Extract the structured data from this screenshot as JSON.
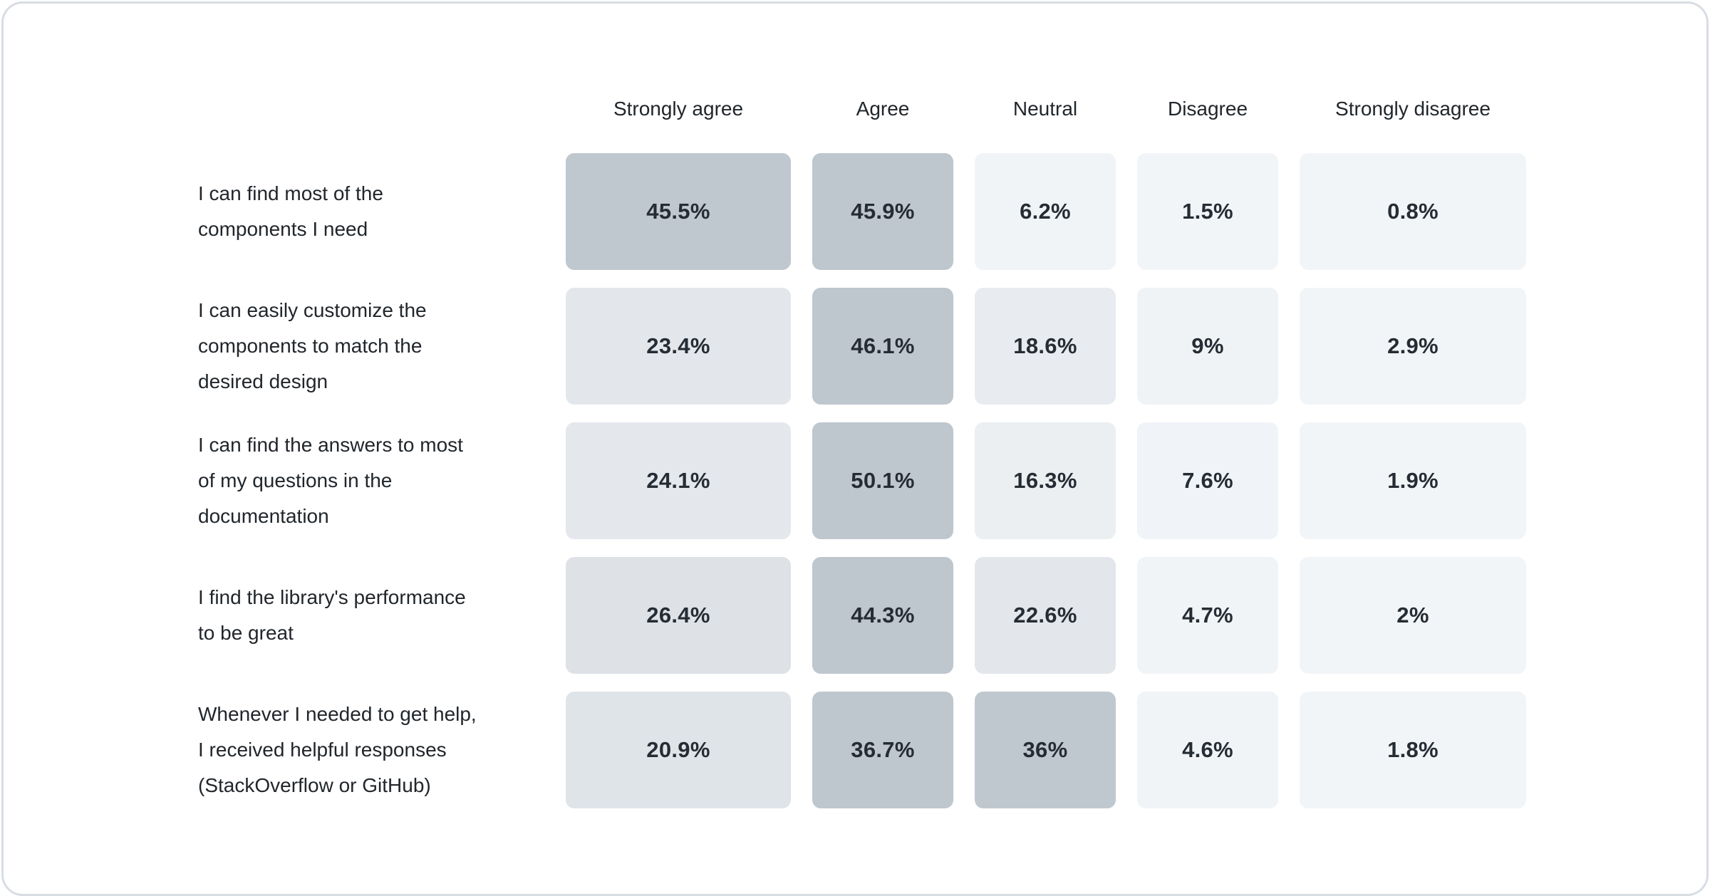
{
  "card": {
    "background": "#ffffff",
    "border_color": "#d8dde3"
  },
  "colors": {
    "cell_min": "#f2f5f8",
    "cell_max": "#bec6ce",
    "value_text": "#262c33",
    "label_text": "#21262b"
  },
  "chart_data": {
    "type": "heatmap",
    "title": "",
    "categories": [
      "Strongly agree",
      "Agree",
      "Neutral",
      "Disagree",
      "Strongly disagree"
    ],
    "rows": [
      {
        "label": "I can find most of the components I need",
        "display_label": "I can find most of the\ncomponents I need",
        "values": [
          45.5,
          45.9,
          6.2,
          1.5,
          0.8
        ],
        "value_labels": [
          "45.5%",
          "45.9%",
          "6.2%",
          "1.5%",
          "0.8%"
        ]
      },
      {
        "label": "I can easily customize the components to match the desired design",
        "display_label": "I can easily customize the\ncomponents to match the\ndesired design",
        "values": [
          23.4,
          46.1,
          18.6,
          9,
          2.9
        ],
        "value_labels": [
          "23.4%",
          "46.1%",
          "18.6%",
          "9%",
          "2.9%"
        ]
      },
      {
        "label": "I can find the answers to most of my questions in the documentation",
        "display_label": "I can find the answers to most\nof my questions in the\ndocumentation",
        "values": [
          24.1,
          50.1,
          16.3,
          7.6,
          1.9
        ],
        "value_labels": [
          "24.1%",
          "50.1%",
          "16.3%",
          "7.6%",
          "1.9%"
        ]
      },
      {
        "label": "I find the library's performance to be great",
        "display_label": "I find the library's performance\nto be great",
        "values": [
          26.4,
          44.3,
          22.6,
          4.7,
          2
        ],
        "value_labels": [
          "26.4%",
          "44.3%",
          "22.6%",
          "4.7%",
          "2%"
        ]
      },
      {
        "label": "Whenever I needed to get help, I received helpful responses (StackOverflow or GitHub)",
        "display_label": "Whenever I needed to get help,\nI received helpful responses\n(StackOverflow or GitHub)",
        "values": [
          20.9,
          36.7,
          36,
          4.6,
          1.8
        ],
        "value_labels": [
          "20.9%",
          "36.7%",
          "36%",
          "4.6%",
          "1.8%"
        ]
      }
    ],
    "unit": "%",
    "value_format": "percent",
    "legend": "none",
    "grid": "off",
    "color_scale": {
      "min_color": "#f2f5f8",
      "max_color": "#bec6ce",
      "normalize": "row-max",
      "exponent": 1.8
    }
  }
}
